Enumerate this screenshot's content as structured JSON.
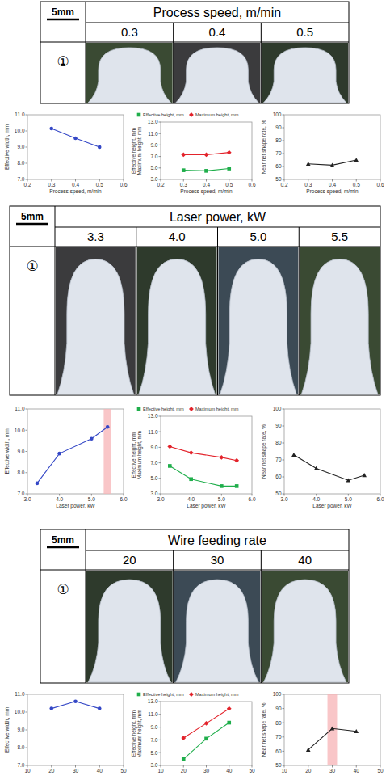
{
  "sections": [
    {
      "scale_bar": "5mm",
      "title": "Process speed, m/min",
      "columns": [
        "0.3",
        "0.4",
        "0.5"
      ],
      "row_label": "①"
    },
    {
      "scale_bar": "5mm",
      "title": "Laser power, kW",
      "columns": [
        "3.3",
        "4.0",
        "5.0",
        "5.5"
      ],
      "row_label": "①"
    },
    {
      "scale_bar": "5mm",
      "title": "Wire feeding rate",
      "columns": [
        "20",
        "30",
        "40"
      ],
      "row_label": "①"
    }
  ],
  "chart_data": [
    {
      "type": "line",
      "xlabel": "Process speed, m/min",
      "ylabel": "Effective width, mm",
      "xlim": [
        0.2,
        0.6
      ],
      "xticks": [
        0.2,
        0.3,
        0.4,
        0.5,
        0.6
      ],
      "ylim": [
        7,
        11
      ],
      "yticks": [
        {
          "value": 7,
          "label": "7.0"
        },
        {
          "value": 8,
          "label": "8.0"
        },
        {
          "value": 9,
          "label": "9.0"
        },
        {
          "value": 10,
          "label": "10.0"
        },
        {
          "value": 11,
          "label": "11.0"
        }
      ],
      "grid": false,
      "x": [
        0.3,
        0.4,
        0.5
      ],
      "series": [
        {
          "color": "#3447c6",
          "marker": "circle",
          "line_style": "solid",
          "values": [
            10.15,
            9.55,
            9.0
          ]
        }
      ]
    },
    {
      "type": "line",
      "xlabel": "Process speed, m/min",
      "ylabel": [
        "Effective height, mm",
        "Maximum height, mm"
      ],
      "xlim": [
        0.2,
        0.6
      ],
      "xticks": [
        0.2,
        0.3,
        0.4,
        0.5,
        0.6
      ],
      "ylim": [
        3,
        13
      ],
      "yticks": [
        {
          "value": 3,
          "label": "3.0"
        },
        {
          "value": 5,
          "label": "5.0"
        },
        {
          "value": 7,
          "label": "7.0"
        },
        {
          "value": 9,
          "label": "9.0"
        },
        {
          "value": 11,
          "label": "11.0"
        },
        {
          "value": 13,
          "label": "13.0"
        }
      ],
      "grid": false,
      "legend": "top",
      "x": [
        0.3,
        0.4,
        0.5
      ],
      "series": [
        {
          "name": "Effective height, mm",
          "color": "#1fae4b",
          "marker": "square",
          "line_style": "solid",
          "values": [
            4.6,
            4.5,
            4.9
          ]
        },
        {
          "name": "Maximum height, mm",
          "color": "#e3232b",
          "marker": "diamond",
          "line_style": "solid",
          "values": [
            7.3,
            7.3,
            7.7
          ]
        }
      ]
    },
    {
      "type": "line",
      "xlabel": "Process speed, m/min",
      "ylabel": "Near net shape rate, %",
      "xlim": [
        0.2,
        0.6
      ],
      "xticks": [
        0.2,
        0.3,
        0.4,
        0.5,
        0.6
      ],
      "ylim": [
        50,
        100
      ],
      "yticks": [
        50,
        60,
        70,
        80,
        90,
        100
      ],
      "grid": false,
      "x": [
        0.3,
        0.4,
        0.5
      ],
      "series": [
        {
          "color": "#222222",
          "marker": "triangle",
          "line_style": "solid",
          "values": [
            62,
            61,
            65
          ]
        }
      ]
    },
    {
      "type": "line",
      "xlabel": "Laser power, kW",
      "ylabel": "Effective width, mm",
      "xlim": [
        3,
        6
      ],
      "xticks": [
        {
          "value": 3,
          "label": "3.0"
        },
        {
          "value": 4,
          "label": "4.0"
        },
        {
          "value": 5,
          "label": "5.0"
        },
        {
          "value": 6,
          "label": "6.0"
        }
      ],
      "ylim": [
        7,
        11
      ],
      "yticks": [
        {
          "value": 7,
          "label": "7.0"
        },
        {
          "value": 8,
          "label": "8.0"
        },
        {
          "value": 9,
          "label": "9.0"
        },
        {
          "value": 10,
          "label": "10.0"
        },
        {
          "value": 11,
          "label": "11.0"
        }
      ],
      "grid": false,
      "highlight_range": [
        5.38,
        5.62
      ],
      "x": [
        3.3,
        4.0,
        5.0,
        5.5
      ],
      "series": [
        {
          "color": "#3447c6",
          "marker": "circle",
          "line_style": "solid",
          "values": [
            7.5,
            8.9,
            9.6,
            10.15
          ]
        }
      ]
    },
    {
      "type": "line",
      "xlabel": "Laser power, kW",
      "ylabel": [
        "Effective height, mm",
        "Maximum height, mm"
      ],
      "xlim": [
        3,
        6
      ],
      "xticks": [
        {
          "value": 3,
          "label": "3.0"
        },
        {
          "value": 4,
          "label": "4.0"
        },
        {
          "value": 5,
          "label": "5.0"
        },
        {
          "value": 6,
          "label": "6.0"
        }
      ],
      "ylim": [
        3,
        13
      ],
      "yticks": [
        {
          "value": 3,
          "label": "3.0"
        },
        {
          "value": 5,
          "label": "5.0"
        },
        {
          "value": 7,
          "label": "7.0"
        },
        {
          "value": 9,
          "label": "9.0"
        },
        {
          "value": 11,
          "label": "11.0"
        },
        {
          "value": 13,
          "label": "13.0"
        }
      ],
      "grid": false,
      "legend": "top",
      "x": [
        3.3,
        4.0,
        5.0,
        5.5
      ],
      "series": [
        {
          "name": "Effective height, mm",
          "color": "#1fae4b",
          "marker": "square",
          "line_style": "solid",
          "values": [
            6.6,
            4.9,
            4.0,
            4.0
          ]
        },
        {
          "name": "Maximum height, mm",
          "color": "#e3232b",
          "marker": "diamond",
          "line_style": "solid",
          "values": [
            9.1,
            8.3,
            7.7,
            7.3
          ]
        }
      ]
    },
    {
      "type": "line",
      "xlabel": "Laser power, kW",
      "ylabel": "Near net shape rate, %",
      "xlim": [
        3,
        6
      ],
      "xticks": [
        {
          "value": 3,
          "label": "3.0"
        },
        {
          "value": 4,
          "label": "4.0"
        },
        {
          "value": 5,
          "label": "5.0"
        },
        {
          "value": 6,
          "label": "6.0"
        }
      ],
      "ylim": [
        50,
        100
      ],
      "yticks": [
        50,
        60,
        70,
        80,
        90,
        100
      ],
      "grid": false,
      "x": [
        3.3,
        4.0,
        5.0,
        5.5
      ],
      "series": [
        {
          "color": "#222222",
          "marker": "triangle",
          "line_style": "solid",
          "values": [
            73,
            65,
            58,
            61
          ]
        }
      ]
    },
    {
      "type": "line",
      "ylabel": "Effective width, mm",
      "xlim": [
        10,
        50
      ],
      "xticks": [
        10,
        20,
        30,
        40,
        50
      ],
      "ylim": [
        7,
        11
      ],
      "yticks": [
        {
          "value": 7,
          "label": "7.0"
        },
        {
          "value": 8,
          "label": "8.0"
        },
        {
          "value": 9,
          "label": "9.0"
        },
        {
          "value": 10,
          "label": "10.0"
        },
        {
          "value": 11,
          "label": "11.0"
        }
      ],
      "grid": false,
      "x": [
        20,
        30,
        40
      ],
      "series": [
        {
          "color": "#3447c6",
          "marker": "circle",
          "line_style": "solid",
          "values": [
            10.2,
            10.6,
            10.2
          ]
        }
      ]
    },
    {
      "type": "line",
      "ylabel": [
        "Effective height, mm",
        "Maximum height, mm"
      ],
      "xlim": [
        10,
        50
      ],
      "xticks": [
        10,
        20,
        30,
        40,
        50
      ],
      "ylim": [
        3,
        13
      ],
      "yticks": [
        {
          "value": 3,
          "label": "3.0"
        },
        {
          "value": 5,
          "label": "5.0"
        },
        {
          "value": 7,
          "label": "7.0"
        },
        {
          "value": 9,
          "label": "9.0"
        },
        {
          "value": 11,
          "label": "11.0"
        },
        {
          "value": 13,
          "label": "13.0"
        }
      ],
      "grid": false,
      "legend": "top",
      "x": [
        20,
        30,
        40
      ],
      "series": [
        {
          "name": "Effective height, mm",
          "color": "#1fae4b",
          "marker": "square",
          "line_style": "solid",
          "values": [
            4.0,
            7.2,
            9.7
          ]
        },
        {
          "name": "Maximum height, mm",
          "color": "#e3232b",
          "marker": "diamond",
          "line_style": "solid",
          "values": [
            7.3,
            9.6,
            11.9
          ]
        }
      ]
    },
    {
      "type": "line",
      "ylabel": "Near net shape rate, %",
      "xlim": [
        10,
        50
      ],
      "xticks": [
        10,
        20,
        30,
        40,
        50
      ],
      "ylim": [
        50,
        100
      ],
      "yticks": [
        50,
        60,
        70,
        80,
        90,
        100
      ],
      "grid": false,
      "highlight_range": [
        28,
        32
      ],
      "x": [
        20,
        30,
        40
      ],
      "series": [
        {
          "color": "#222222",
          "marker": "triangle",
          "line_style": "solid",
          "values": [
            61,
            76,
            74
          ]
        }
      ]
    }
  ]
}
